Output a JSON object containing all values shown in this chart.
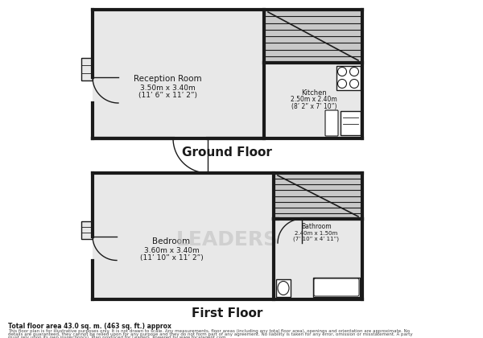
{
  "bg_color": "#ffffff",
  "wall_color": "#1a1a1a",
  "room_fill": "#e8e8e8",
  "stair_fill": "#c8c8c8",
  "text_color": "#1a1a1a",
  "ground_floor_label": "Ground Floor",
  "first_floor_label": "First Floor",
  "reception_room_label": "Reception Room",
  "reception_room_dim1": "3.50m x 3.40m",
  "reception_room_dim2": "(11’ 6” x 11’ 2”)",
  "kitchen_label": "Kitchen",
  "kitchen_dim1": "2.50m x 2.40m",
  "kitchen_dim2": "(8’ 2” x 7’ 10”)",
  "bedroom_label": "Bedroom",
  "bedroom_dim1": "3.60m x 3.40m",
  "bedroom_dim2": "(11’ 10” x 11’ 2”)",
  "bathroom_label": "Bathroom",
  "bathroom_dim1": "2.40m x 1.50m",
  "bathroom_dim2": "(7’ 10” x 4’ 11”)",
  "total_area": "Total floor area 43.0 sq. m. (463 sq. ft.) approx",
  "disclaimer_line1": "This floor plan is for illustrative purposes only. It is not drawn to scale. Any measurements, floor areas (including any total floor area), openings and orientation are approximate. No",
  "disclaimer_line2": "details are guaranteed, they cannot be relied upon for any purpose and they do not form part of any agreement. No liability is taken for any error, omission or misstatement. A party",
  "disclaimer_line3": "must rely upon its own inspection(s). Plan produced for Leaders. Powered by www.focalagent.com",
  "watermark": "LEADERS"
}
